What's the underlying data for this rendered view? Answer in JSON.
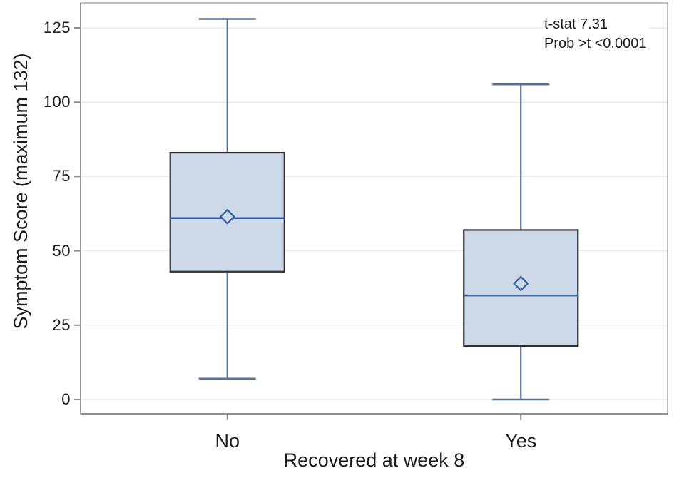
{
  "figure": {
    "kind": "box-plot-comparison"
  },
  "annotation": {
    "line1": "t-stat 7.31",
    "line2": "Prob >t <0.0001"
  },
  "chart_data": {
    "type": "box",
    "title": "",
    "xlabel": "Recovered at week 8",
    "ylabel": "Symptom Score (maximum 132)",
    "categories": [
      "No",
      "Yes"
    ],
    "yticks": [
      0,
      25,
      50,
      75,
      100,
      125
    ],
    "ylim": [
      -5,
      134
    ],
    "grid": "horizontal",
    "legend": "none",
    "series": [
      {
        "category": "No",
        "whisker_low": 7,
        "q1": 43,
        "median": 61,
        "mean": 61.5,
        "q3": 83,
        "whisker_high": 128
      },
      {
        "category": "Yes",
        "whisker_low": 0,
        "q1": 18,
        "median": 35,
        "mean": 39,
        "q3": 57,
        "whisker_high": 106
      }
    ],
    "annotations": [
      "t-stat 7.31",
      "Prob >t <0.0001"
    ]
  },
  "colors": {
    "background": "#ffffff",
    "box_fill": "#cdd9e8",
    "box_border": "#2d2d35",
    "median_line": "#3a60a4",
    "whisker_line": "#53709f",
    "mean_diamond_stroke": "#3a60a4",
    "gridline": "#ebebeb",
    "plot_border": "#a5a5a5",
    "axis_line": "#8f8f8f",
    "text": "#1c1c1c"
  }
}
